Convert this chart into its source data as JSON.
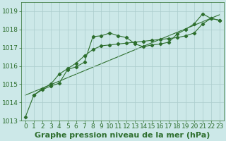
{
  "title": "Graphe pression niveau de la mer (hPa)",
  "background_color": "#cce8e8",
  "grid_color": "#aacccc",
  "line_color": "#2d6e2d",
  "xlim": [
    -0.5,
    23.5
  ],
  "ylim": [
    1013.0,
    1019.5
  ],
  "yticks": [
    1013,
    1014,
    1015,
    1016,
    1017,
    1018,
    1019
  ],
  "xticks": [
    0,
    1,
    2,
    3,
    4,
    5,
    6,
    7,
    8,
    9,
    10,
    11,
    12,
    13,
    14,
    15,
    16,
    17,
    18,
    19,
    20,
    21,
    22,
    23
  ],
  "series1_x": [
    0,
    1,
    2,
    3,
    4,
    5,
    6,
    7,
    8,
    9,
    10,
    11,
    12,
    13,
    14,
    15,
    16,
    17,
    18,
    19,
    20,
    21,
    22,
    23
  ],
  "series1_y": [
    1013.2,
    1014.4,
    1014.7,
    1014.9,
    1015.05,
    1015.8,
    1015.95,
    1016.2,
    1017.6,
    1017.65,
    1017.8,
    1017.65,
    1017.55,
    1017.2,
    1017.05,
    1017.15,
    1017.2,
    1017.3,
    1017.75,
    1018.0,
    1018.3,
    1018.85,
    1018.6,
    1018.5
  ],
  "series2_x": [
    1,
    2,
    3,
    4,
    5,
    6,
    7,
    8,
    9,
    10,
    11,
    12,
    13,
    14,
    15,
    16,
    17,
    18,
    19,
    20,
    21,
    22,
    23
  ],
  "series2_y": [
    1014.4,
    1014.75,
    1015.0,
    1015.55,
    1015.85,
    1016.15,
    1016.55,
    1016.9,
    1017.1,
    1017.15,
    1017.2,
    1017.25,
    1017.3,
    1017.35,
    1017.4,
    1017.45,
    1017.5,
    1017.55,
    1017.65,
    1017.8,
    1018.3,
    1018.6,
    1018.5
  ],
  "trend_x": [
    0,
    23
  ],
  "trend_y": [
    1014.4,
    1018.8
  ],
  "title_fontsize": 8,
  "tick_fontsize": 6.5
}
